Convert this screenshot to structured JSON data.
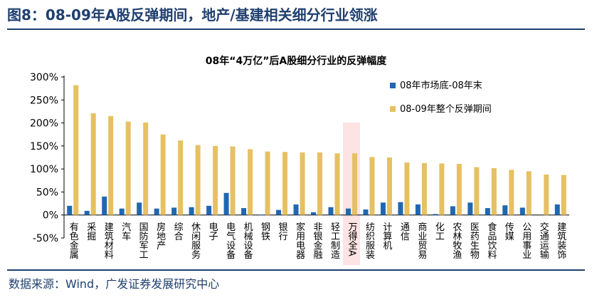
{
  "figure": {
    "title": "图8：08-09年A股反弹期间，地产/基建相关细分行业领涨",
    "source": "数据来源：Wind，广发证券发展研究中心"
  },
  "chart_data": {
    "type": "bar",
    "title": "08年“4万亿”后A股细分行业的反弹幅度",
    "xlabel": "",
    "ylabel": "",
    "ylim": [
      -0.5,
      3.0
    ],
    "y_ticks": [
      -0.5,
      0,
      0.5,
      1.0,
      1.5,
      2.0,
      2.5,
      3.0
    ],
    "y_tick_labels": [
      "-50%",
      "0%",
      "50%",
      "100%",
      "150%",
      "200%",
      "250%",
      "300%"
    ],
    "grid": false,
    "legend_position": "right",
    "highlight_category": "万得全A",
    "highlight_color": "#fde3e3",
    "categories": [
      "有色金属",
      "采掘",
      "建筑材料",
      "汽车",
      "国防军工",
      "房地产",
      "综合",
      "休闲服务",
      "电子",
      "电气设备",
      "机械设备",
      "钢铁",
      "银行",
      "家用电器",
      "非银金融",
      "轻工制造",
      "万得全A",
      "纺织服装",
      "计算机",
      "通信",
      "商业贸易",
      "化工",
      "农林牧渔",
      "医药生物",
      "食品饮料",
      "传媒",
      "公用事业",
      "交通运输",
      "建筑装饰"
    ],
    "series": [
      {
        "name": "08年市场底-08年末",
        "color": "#2067b1",
        "values": [
          0.2,
          0.09,
          0.4,
          0.14,
          0.27,
          0.14,
          0.16,
          0.17,
          0.2,
          0.48,
          0.15,
          0.01,
          0.11,
          0.23,
          0.06,
          0.17,
          0.14,
          0.12,
          0.27,
          0.28,
          0.23,
          0.02,
          0.19,
          0.27,
          0.15,
          0.21,
          0.16,
          0.0,
          0.23
        ]
      },
      {
        "name": "08-09年整个反弹期间",
        "color": "#e6c062",
        "values": [
          2.82,
          2.21,
          2.15,
          2.03,
          2.01,
          1.75,
          1.62,
          1.52,
          1.5,
          1.49,
          1.43,
          1.38,
          1.37,
          1.36,
          1.36,
          1.34,
          1.34,
          1.26,
          1.25,
          1.14,
          1.13,
          1.12,
          1.11,
          1.04,
          1.02,
          0.98,
          0.95,
          0.88,
          0.87
        ]
      }
    ]
  }
}
